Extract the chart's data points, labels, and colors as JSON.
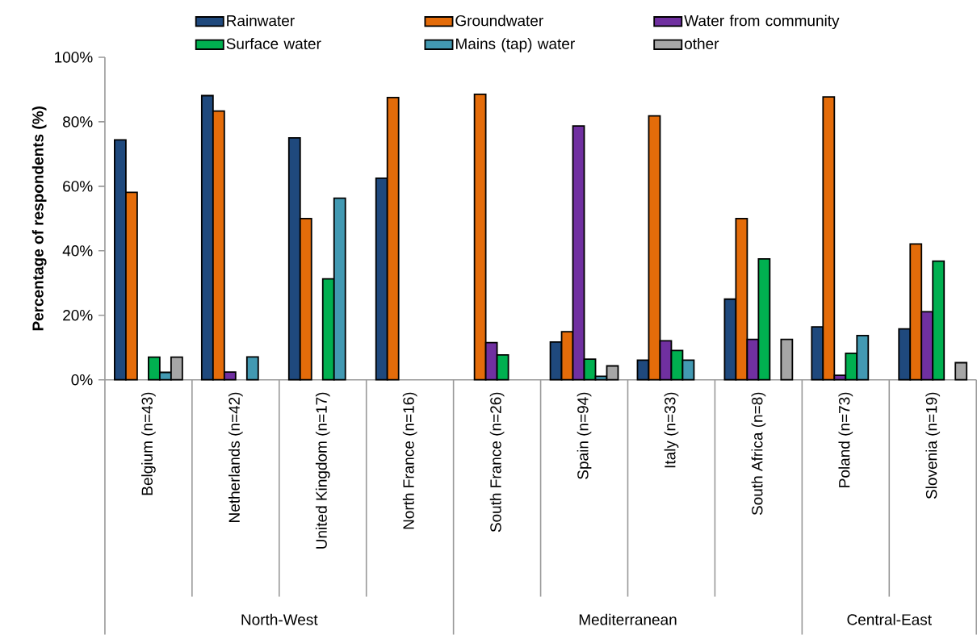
{
  "chart_data": {
    "type": "bar",
    "ylabel": "Percentage of respondents (%)",
    "categories": [
      "Belgium (n=43)",
      "Netherlands (n=42)",
      "United Kingdom (n=17)",
      "North France (n=16)",
      "South France (n=26)",
      "Spain (n=94)",
      "Italy (n=33)",
      "South Africa (n=8)",
      "Poland (n=73)",
      "Slovenia (n=19)"
    ],
    "series": [
      {
        "name": "Rainwater",
        "color": "#1f497d",
        "values": [
          74.4,
          88.1,
          75,
          62.5,
          null,
          11.7,
          6.1,
          25,
          16.4,
          15.8
        ]
      },
      {
        "name": "Groundwater",
        "color": "#e46c0a",
        "values": [
          58.1,
          83.3,
          50,
          87.5,
          88.5,
          14.9,
          81.8,
          50,
          87.7,
          42.1
        ]
      },
      {
        "name": "Water from community",
        "color": "#7030a0",
        "values": [
          null,
          2.4,
          null,
          null,
          11.5,
          78.7,
          12.1,
          12.5,
          1.4,
          21.1
        ]
      },
      {
        "name": "Surface water",
        "color": "#00b050",
        "values": [
          7,
          null,
          31.3,
          null,
          7.7,
          6.4,
          9.1,
          37.5,
          8.2,
          36.8
        ]
      },
      {
        "name": "Mains (tap) water",
        "color": "#4299b2",
        "values": [
          2.3,
          7.1,
          56.3,
          null,
          null,
          1.1,
          6.1,
          null,
          13.7,
          null
        ]
      },
      {
        "name": "other",
        "color": "#a6a6a6",
        "values": [
          7,
          null,
          null,
          null,
          null,
          4.3,
          null,
          12.5,
          null,
          5.3
        ]
      }
    ],
    "ylim": [
      0,
      100
    ],
    "yticks": [
      {
        "value": 0,
        "label": "0%"
      },
      {
        "value": 20,
        "label": "20%"
      },
      {
        "value": 40,
        "label": "40%"
      },
      {
        "value": 60,
        "label": "60%"
      },
      {
        "value": 80,
        "label": "80%"
      },
      {
        "value": 100,
        "label": "100%"
      }
    ],
    "annotations": [
      "North-West",
      "Mediterranean",
      "Central-East"
    ],
    "legend": "top",
    "grid": false
  }
}
